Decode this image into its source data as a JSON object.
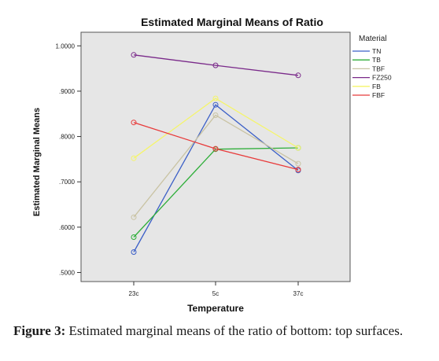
{
  "chart_data": {
    "type": "line",
    "title": "Estimated Marginal Means of Ratio",
    "xlabel": "Temperature",
    "ylabel": "Estimated Marginal Means",
    "categories": [
      "23c",
      "5c",
      "37c"
    ],
    "ylim": [
      0.48,
      1.03
    ],
    "yticks": [
      ".5000",
      ".6000",
      ".7000",
      ".8000",
      ".9000",
      "1.0000"
    ],
    "ytick_values": [
      0.5,
      0.6,
      0.7,
      0.8,
      0.9,
      1.0
    ],
    "legend_title": "Material",
    "legend_position": "right",
    "grid": false,
    "plot_background": "#e6e6e6",
    "series": [
      {
        "name": "TN",
        "color": "#3b5fc7",
        "values": [
          0.545,
          0.87,
          0.725
        ]
      },
      {
        "name": "TB",
        "color": "#2fae3a",
        "values": [
          0.578,
          0.772,
          0.775
        ]
      },
      {
        "name": "TBF",
        "color": "#c9c3a3",
        "values": [
          0.622,
          0.847,
          0.74
        ]
      },
      {
        "name": "FZ250",
        "color": "#7a2a8a",
        "values": [
          0.98,
          0.957,
          0.935
        ]
      },
      {
        "name": "FB",
        "color": "#f5f56a",
        "values": [
          0.752,
          0.884,
          0.775
        ]
      },
      {
        "name": "FBF",
        "color": "#e83a3a",
        "values": [
          0.831,
          0.773,
          0.727
        ]
      }
    ]
  },
  "caption": {
    "label": "Figure 3:",
    "text": " Estimated marginal means of the ratio of bottom: top surfaces."
  }
}
